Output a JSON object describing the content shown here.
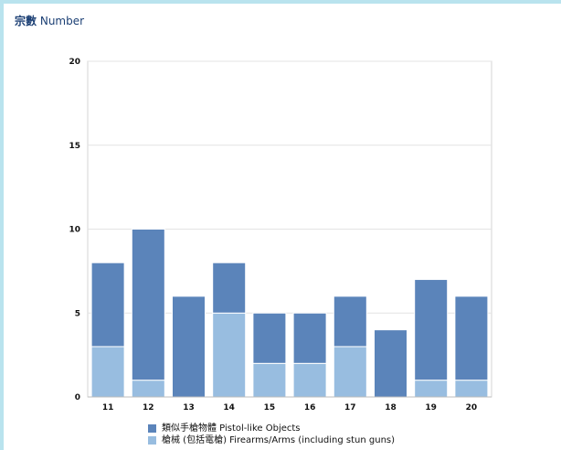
{
  "header": {
    "unit_label_zh": "宗數",
    "unit_label_en": "Number"
  },
  "colors": {
    "pistol_like": "#5b84ba",
    "firearms": "#98bde0",
    "frame_bg": "#b9e3ee"
  },
  "chart_data": {
    "type": "bar",
    "stacked": true,
    "categories": [
      "11",
      "12",
      "13",
      "14",
      "15",
      "16",
      "17",
      "18",
      "19",
      "20"
    ],
    "series": [
      {
        "name": "槍械 (包括電槍) Firearms/Arms (including stun guns)",
        "values": [
          3,
          1,
          0,
          5,
          2,
          2,
          3,
          0,
          1,
          1
        ]
      },
      {
        "name": "類似手槍物體 Pistol-like Objects",
        "values": [
          5,
          9,
          6,
          3,
          3,
          3,
          3,
          4,
          6,
          5
        ]
      }
    ],
    "yticks": [
      "0",
      "5",
      "10",
      "15",
      "20"
    ],
    "ylim": [
      0,
      20
    ],
    "grid": true,
    "legend_position": "bottom"
  }
}
